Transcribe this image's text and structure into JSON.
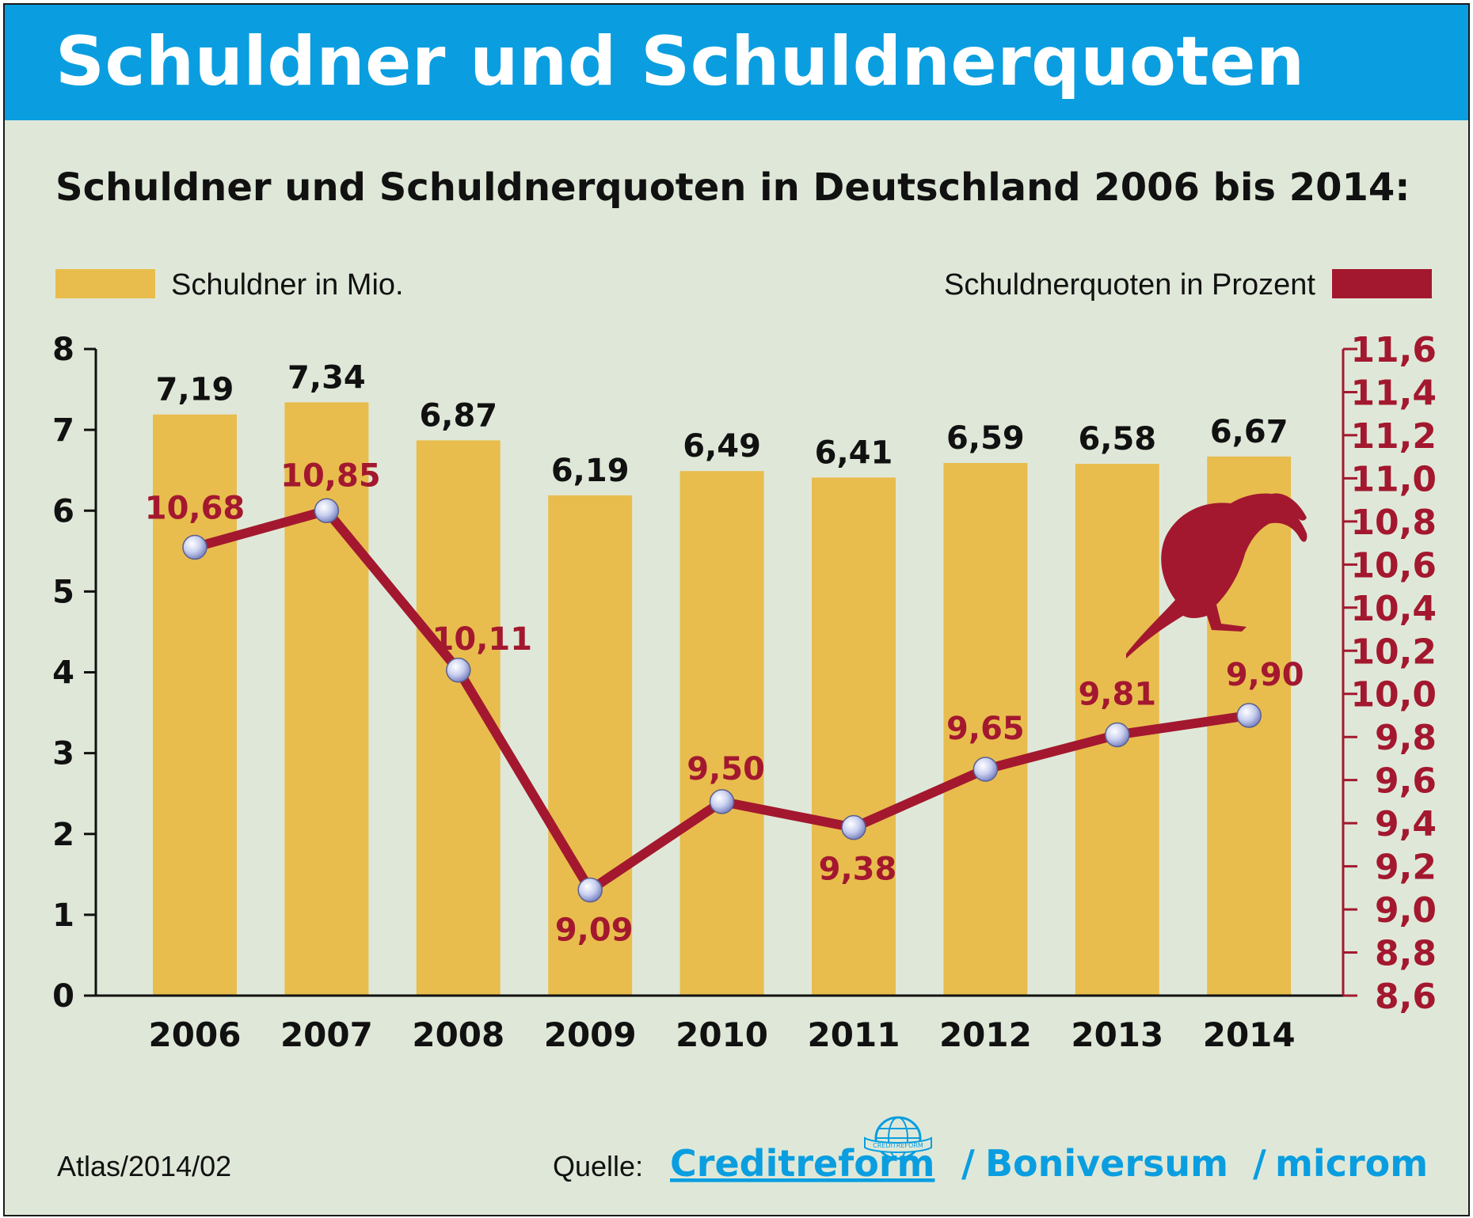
{
  "banner_title": "Schuldner und Schuldnerquoten",
  "colors": {
    "banner": "#0a9ee0",
    "background": "#dfe8d8",
    "bar": "#e8bd4e",
    "line": "#a3182f",
    "text": "#111111",
    "brand": "#0a9ee0"
  },
  "chart_data": {
    "type": "bar",
    "title": "Schuldner und Schuldnerquoten in Deutschland 2006 bis 2014:",
    "categories": [
      "2006",
      "2007",
      "2008",
      "2009",
      "2010",
      "2011",
      "2012",
      "2013",
      "2014"
    ],
    "series": [
      {
        "name": "Schuldner in Mio.",
        "type": "bar",
        "axis": "left",
        "values": [
          7.19,
          7.34,
          6.87,
          6.19,
          6.49,
          6.41,
          6.59,
          6.58,
          6.67
        ],
        "labels": [
          "7,19",
          "7,34",
          "6,87",
          "6,19",
          "6,49",
          "6,41",
          "6,59",
          "6,58",
          "6,67"
        ]
      },
      {
        "name": "Schuldnerquoten in Prozent",
        "type": "line",
        "axis": "right",
        "values": [
          10.68,
          10.85,
          10.11,
          9.09,
          9.5,
          9.38,
          9.65,
          9.81,
          9.9
        ],
        "labels": [
          "10,68",
          "10,85",
          "10,11",
          "9,09",
          "9,50",
          "9,38",
          "9,65",
          "9,81",
          "9,90"
        ]
      }
    ],
    "y_left": {
      "range": [
        0,
        8
      ],
      "ticks": [
        "0",
        "1",
        "2",
        "3",
        "4",
        "5",
        "6",
        "7",
        "8"
      ]
    },
    "y_right": {
      "range": [
        8.6,
        11.6
      ],
      "ticks": [
        "8,6",
        "8,8",
        "9,0",
        "9,2",
        "9,4",
        "9,6",
        "9,8",
        "10,0",
        "10,2",
        "10,4",
        "10,6",
        "10,8",
        "11,0",
        "11,2",
        "11,4",
        "11,6"
      ]
    },
    "legend_position": "top",
    "grid": false
  },
  "footer": {
    "code": "Atlas/2014/02",
    "source_label": "Quelle:",
    "sources": [
      "Creditreform",
      "/",
      "Boniversum",
      "/",
      "microm"
    ],
    "logo_text": "CREDITREFORM"
  }
}
